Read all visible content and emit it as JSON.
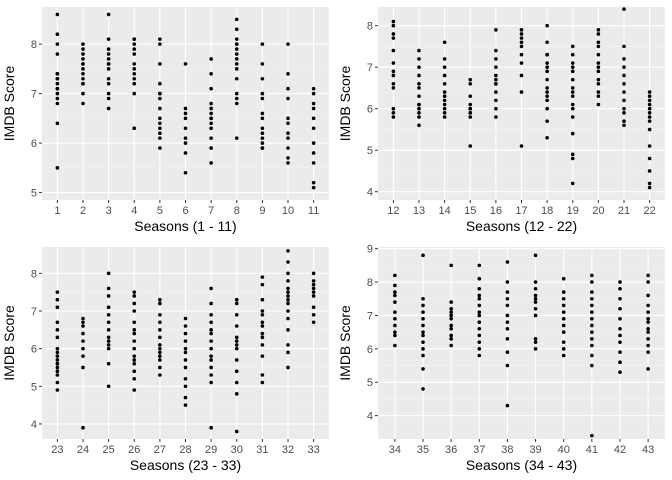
{
  "chart_data": [
    {
      "type": "scatter",
      "title": "",
      "xlabel": "Seasons (1 - 11)",
      "ylabel": "IMDB Score",
      "categories": [
        "1",
        "2",
        "3",
        "4",
        "5",
        "6",
        "7",
        "8",
        "9",
        "10",
        "11"
      ],
      "ylim": [
        4.85,
        8.75
      ],
      "yticks": [
        5,
        6,
        7,
        8
      ],
      "grid": true,
      "legend": "none",
      "points": [
        [
          5.5,
          6.4,
          6.8,
          6.9,
          7.0,
          7.1,
          7.1,
          7.2,
          7.3,
          7.3,
          7.4,
          7.4,
          7.8,
          8.0,
          8.2,
          8.6
        ],
        [
          6.8,
          7.0,
          7.2,
          7.2,
          7.3,
          7.4,
          7.5,
          7.6,
          7.6,
          7.7,
          7.8,
          7.9,
          8.0
        ],
        [
          6.7,
          6.9,
          7.0,
          7.2,
          7.3,
          7.5,
          7.6,
          7.6,
          7.7,
          7.8,
          7.9,
          8.1,
          8.6
        ],
        [
          6.3,
          6.3,
          7.0,
          7.2,
          7.3,
          7.4,
          7.5,
          7.6,
          7.8,
          7.9,
          8.0,
          8.1,
          8.1
        ],
        [
          5.9,
          6.1,
          6.2,
          6.3,
          6.4,
          6.5,
          6.7,
          6.9,
          7.0,
          7.0,
          7.2,
          7.6,
          8.0,
          8.1
        ],
        [
          5.4,
          5.8,
          6.0,
          6.1,
          6.3,
          6.5,
          6.6,
          6.7,
          7.6
        ],
        [
          5.6,
          5.9,
          6.1,
          6.3,
          6.4,
          6.5,
          6.5,
          6.6,
          6.7,
          6.8,
          7.1,
          7.4,
          7.7
        ],
        [
          6.1,
          6.8,
          6.9,
          7.0,
          7.3,
          7.5,
          7.6,
          7.7,
          7.8,
          7.9,
          8.0,
          8.0,
          8.1,
          8.3,
          8.5
        ],
        [
          5.9,
          5.9,
          6.0,
          6.1,
          6.2,
          6.3,
          6.5,
          6.6,
          6.9,
          7.0,
          7.3,
          7.6,
          8.0
        ],
        [
          5.6,
          5.7,
          5.9,
          6.1,
          6.2,
          6.4,
          6.5,
          6.9,
          7.1,
          7.4,
          8.0
        ],
        [
          5.1,
          5.2,
          5.6,
          5.8,
          6.0,
          6.3,
          6.5,
          6.7,
          6.8,
          7.0,
          7.1
        ]
      ]
    },
    {
      "type": "scatter",
      "title": "",
      "xlabel": "Seasons (12 - 22)",
      "ylabel": "IMDB Score",
      "categories": [
        "12",
        "13",
        "14",
        "15",
        "16",
        "17",
        "18",
        "19",
        "20",
        "21",
        "22"
      ],
      "ylim": [
        3.8,
        8.45
      ],
      "yticks": [
        4,
        5,
        6,
        7,
        8
      ],
      "grid": true,
      "legend": "none",
      "points": [
        [
          5.8,
          5.9,
          6.0,
          6.5,
          6.6,
          6.8,
          6.9,
          7.1,
          7.4,
          7.7,
          7.8,
          8.0,
          8.1
        ],
        [
          5.6,
          5.8,
          5.9,
          6.0,
          6.1,
          6.1,
          6.3,
          6.5,
          6.6,
          6.8,
          7.0,
          7.2,
          7.4
        ],
        [
          5.8,
          5.9,
          6.0,
          6.1,
          6.2,
          6.3,
          6.4,
          6.6,
          6.8,
          7.0,
          7.2,
          7.6
        ],
        [
          5.1,
          5.8,
          5.9,
          5.9,
          6.0,
          6.0,
          6.1,
          6.3,
          6.6,
          6.7
        ],
        [
          5.8,
          6.0,
          6.2,
          6.4,
          6.6,
          6.6,
          6.7,
          6.8,
          7.0,
          7.2,
          7.4,
          7.9
        ],
        [
          5.1,
          6.4,
          6.8,
          7.1,
          7.3,
          7.5,
          7.6,
          7.7,
          7.8,
          7.9
        ],
        [
          5.3,
          5.7,
          6.0,
          6.2,
          6.3,
          6.4,
          6.5,
          6.7,
          6.9,
          7.0,
          7.1,
          7.3,
          7.3,
          7.6,
          8.0
        ],
        [
          4.2,
          4.8,
          4.9,
          5.4,
          5.8,
          6.0,
          6.1,
          6.3,
          6.4,
          6.5,
          6.7,
          6.9,
          7.0,
          7.1,
          7.3,
          7.5
        ],
        [
          6.1,
          6.3,
          6.4,
          6.6,
          6.7,
          6.9,
          7.0,
          7.1,
          7.3,
          7.5,
          7.6,
          7.8,
          7.9
        ],
        [
          5.6,
          5.7,
          5.9,
          6.0,
          6.2,
          6.4,
          6.6,
          6.8,
          7.0,
          7.2,
          7.5,
          8.4
        ],
        [
          4.1,
          4.2,
          4.5,
          4.8,
          5.1,
          5.5,
          5.7,
          5.8,
          5.9,
          6.0,
          6.1,
          6.2,
          6.3,
          6.4
        ]
      ]
    },
    {
      "type": "scatter",
      "title": "",
      "xlabel": "Seasons (23 - 33)",
      "ylabel": "IMDB Score",
      "categories": [
        "23",
        "24",
        "25",
        "26",
        "27",
        "28",
        "29",
        "30",
        "31",
        "32",
        "33"
      ],
      "ylim": [
        3.6,
        8.7
      ],
      "yticks": [
        4,
        5,
        6,
        7,
        8
      ],
      "grid": true,
      "legend": "none",
      "points": [
        [
          4.9,
          5.1,
          5.3,
          5.4,
          5.5,
          5.6,
          5.7,
          5.8,
          5.9,
          6.0,
          6.3,
          6.5,
          6.7,
          7.1,
          7.3,
          7.5
        ],
        [
          3.9,
          5.5,
          5.8,
          6.0,
          6.2,
          6.4,
          6.6,
          6.7,
          6.8
        ],
        [
          5.0,
          5.6,
          6.0,
          6.1,
          6.2,
          6.3,
          6.5,
          6.7,
          6.9,
          7.1,
          7.4,
          7.6,
          8.0
        ],
        [
          4.9,
          5.2,
          5.4,
          5.6,
          5.7,
          5.8,
          6.0,
          6.2,
          6.4,
          6.5,
          6.7,
          7.0,
          7.2,
          7.4,
          7.5
        ],
        [
          5.3,
          5.5,
          5.7,
          5.8,
          5.9,
          6.0,
          6.1,
          6.3,
          6.5,
          6.7,
          6.9,
          7.2,
          7.3
        ],
        [
          4.5,
          4.7,
          5.0,
          5.2,
          5.5,
          5.7,
          5.9,
          6.0,
          6.2,
          6.4,
          6.6,
          6.8
        ],
        [
          3.9,
          5.1,
          5.3,
          5.5,
          5.7,
          5.8,
          6.0,
          6.2,
          6.4,
          6.5,
          6.7,
          6.9,
          7.2,
          7.6
        ],
        [
          3.8,
          4.8,
          5.1,
          5.4,
          5.7,
          6.0,
          6.1,
          6.2,
          6.3,
          6.6,
          6.9,
          7.2,
          7.3
        ],
        [
          5.1,
          5.3,
          5.8,
          6.1,
          6.3,
          6.4,
          6.6,
          6.7,
          6.9,
          7.0,
          7.3,
          7.7,
          7.9
        ],
        [
          5.5,
          5.9,
          6.1,
          6.5,
          6.8,
          7.0,
          7.2,
          7.3,
          7.4,
          7.5,
          7.6,
          7.8,
          8.0,
          8.3,
          8.6
        ],
        [
          6.7,
          6.9,
          7.1,
          7.4,
          7.5,
          7.6,
          7.7,
          7.8,
          8.0
        ]
      ]
    },
    {
      "type": "scatter",
      "title": "",
      "xlabel": "Seasons (34 - 43)",
      "ylabel": "IMDB Score",
      "categories": [
        "34",
        "35",
        "36",
        "37",
        "38",
        "39",
        "40",
        "41",
        "42",
        "43"
      ],
      "ylim": [
        3.3,
        9.05
      ],
      "yticks": [
        4,
        5,
        6,
        7,
        8,
        9
      ],
      "grid": true,
      "legend": "none",
      "points": [
        [
          6.1,
          6.4,
          6.5,
          6.7,
          6.9,
          7.1,
          7.4,
          7.6,
          7.7,
          7.9,
          8.2
        ],
        [
          4.8,
          5.4,
          5.8,
          6.0,
          6.2,
          6.4,
          6.5,
          6.7,
          6.9,
          7.1,
          7.3,
          7.5,
          8.8
        ],
        [
          6.1,
          6.3,
          6.4,
          6.6,
          6.7,
          6.9,
          7.0,
          7.1,
          7.2,
          7.4,
          8.5
        ],
        [
          5.8,
          6.0,
          6.2,
          6.4,
          6.6,
          6.8,
          7.0,
          7.1,
          7.3,
          7.5,
          7.6,
          7.8,
          8.1,
          8.5
        ],
        [
          4.3,
          5.5,
          5.9,
          6.3,
          6.6,
          6.8,
          7.0,
          7.3,
          7.5,
          7.7,
          8.0,
          8.6
        ],
        [
          6.0,
          6.2,
          6.3,
          7.0,
          7.2,
          7.4,
          7.5,
          7.6,
          7.8,
          8.0,
          8.8
        ],
        [
          5.8,
          6.0,
          6.2,
          6.5,
          6.7,
          6.9,
          7.1,
          7.3,
          7.5,
          7.7,
          8.1
        ],
        [
          3.4,
          5.5,
          5.8,
          6.1,
          6.3,
          6.5,
          6.7,
          6.9,
          7.1,
          7.3,
          7.5,
          7.7,
          8.0,
          8.2
        ],
        [
          5.3,
          5.6,
          5.9,
          6.2,
          6.4,
          6.6,
          6.9,
          7.2,
          7.5,
          7.8,
          8.0
        ],
        [
          5.4,
          5.9,
          6.1,
          6.3,
          6.5,
          6.6,
          6.8,
          6.9,
          7.1,
          7.3,
          7.6,
          8.0,
          8.2
        ]
      ]
    }
  ]
}
